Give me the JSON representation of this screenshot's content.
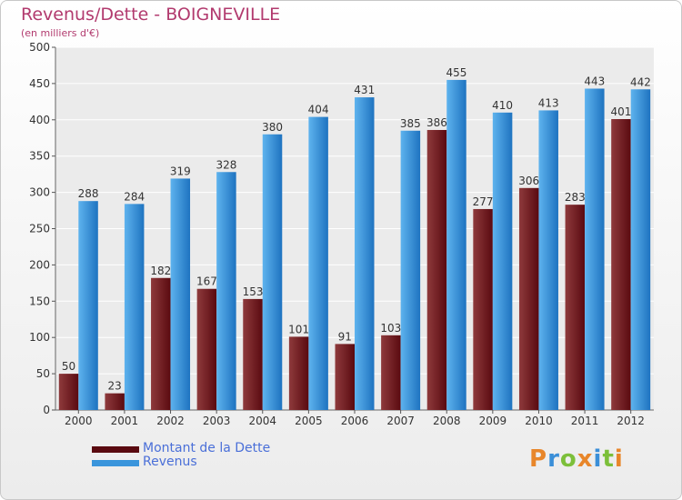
{
  "chart_data": {
    "type": "bar",
    "title": "Revenus/Dette - BOIGNEVILLE",
    "subtitle": "(en milliers d'€)",
    "xlabel": "",
    "ylabel": "",
    "ylim": [
      0,
      500
    ],
    "yticks": [
      0,
      50,
      100,
      150,
      200,
      250,
      300,
      350,
      400,
      450,
      500
    ],
    "categories": [
      "2000",
      "2001",
      "2002",
      "2003",
      "2004",
      "2005",
      "2006",
      "2007",
      "2008",
      "2009",
      "2010",
      "2011",
      "2012"
    ],
    "series": [
      {
        "name": "Montant de la Dette",
        "color": "#7a1f26",
        "colorLight": "#8e3a3c",
        "colorDark": "#5a0a10",
        "values": [
          50,
          23,
          182,
          167,
          153,
          101,
          91,
          103,
          386,
          277,
          306,
          283,
          401
        ]
      },
      {
        "name": "Revenus",
        "color": "#3a95dc",
        "colorLight": "#5eb3ee",
        "colorDark": "#1e73c0",
        "values": [
          288,
          284,
          319,
          328,
          380,
          404,
          431,
          385,
          455,
          410,
          413,
          443,
          442
        ]
      }
    ],
    "grid": true,
    "legend_position": "bottom-left"
  },
  "branding": {
    "logo_letters": [
      "P",
      "r",
      "o",
      "x",
      "i",
      "t",
      "i"
    ],
    "logo_colors": [
      "#e8862a",
      "#3b8fd8",
      "#7cbf3a",
      "#e8862a",
      "#3b8fd8",
      "#7cbf3a",
      "#e8862a"
    ]
  }
}
